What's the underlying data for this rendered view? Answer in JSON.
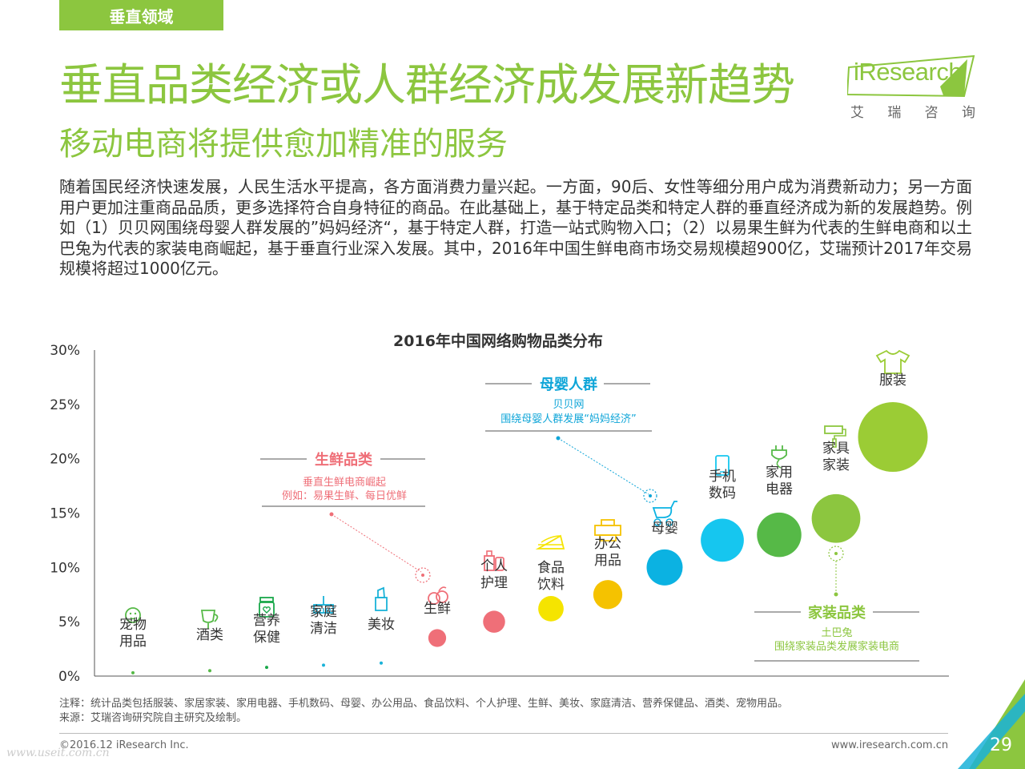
{
  "header": {
    "tag": "垂直领域",
    "title": "垂直品类经济或人群经济成发展新趋势",
    "subtitle": "移动电商将提供愈加精准的服务"
  },
  "logo": {
    "brand": "iResearch",
    "chinese": [
      "艾",
      "瑞",
      "咨",
      "询"
    ]
  },
  "body_text": "随着国民经济快速发展，人民生活水平提高，各方面消费力量兴起。一方面，90后、女性等细分用户成为消费新动力；另一方面用户更加注重商品品质，更多选择符合自身特征的商品。在此基础上，基于特定品类和特定人群的垂直经济成为新的发展趋势。例如（1）贝贝网围绕母婴人群发展的”妈妈经济“，基于特定人群，打造一站式购物入口；（2）以易果生鲜为代表的生鲜电商和以土巴兔为代表的家装电商崛起，基于垂直行业深入发展。其中，2016年中国生鲜电商市场交易规模超900亿，艾瑞预计2017年交易规模将超过1000亿元。",
  "colors": {
    "brand_green": "#8cc63f",
    "text": "#333333"
  },
  "chart_data": {
    "type": "scatter",
    "title": "2016年中国网络购物品类分布",
    "ylim": [
      0,
      30
    ],
    "yticks": [
      "0%",
      "5%",
      "10%",
      "15%",
      "20%",
      "25%",
      "30%"
    ],
    "grid": false,
    "points": [
      {
        "label": [
          "宠物",
          "用品"
        ],
        "icon": "pet-icon",
        "value": 0.3,
        "color": "#56b947"
      },
      {
        "label": [
          "酒类"
        ],
        "icon": "wine-glass-icon",
        "value": 0.5,
        "color": "#56b947"
      },
      {
        "label": [
          "营养",
          "保健"
        ],
        "icon": "health-jar-icon",
        "value": 0.8,
        "color": "#1aa84a"
      },
      {
        "label": [
          "家庭",
          "清洁"
        ],
        "icon": "broom-icon",
        "value": 1.0,
        "color": "#1ab2d8"
      },
      {
        "label": [
          "美妆"
        ],
        "icon": "lipstick-icon",
        "value": 1.2,
        "color": "#1ab2d8"
      },
      {
        "label": [
          "生鲜"
        ],
        "icon": "fruit-icon",
        "value": 3.5,
        "color": "#ef6f78"
      },
      {
        "label": [
          "个人",
          "护理"
        ],
        "icon": "care-bottle-icon",
        "value": 5.0,
        "color": "#ef6f78"
      },
      {
        "label": [
          "食品",
          "饮料"
        ],
        "icon": "cake-icon",
        "value": 6.2,
        "color": "#f5e400"
      },
      {
        "label": [
          "办公",
          "用品"
        ],
        "icon": "printer-icon",
        "value": 7.5,
        "color": "#f5c200"
      },
      {
        "label": [
          "母婴"
        ],
        "icon": "stroller-icon",
        "value": 10.0,
        "color": "#0bb2e2"
      },
      {
        "label": [
          "手机",
          "数码"
        ],
        "icon": "phone-icon",
        "value": 12.5,
        "color": "#16c6ef"
      },
      {
        "label": [
          "家用",
          "电器"
        ],
        "icon": "plug-icon",
        "value": 13.0,
        "color": "#56b947"
      },
      {
        "label": [
          "家具",
          "家装"
        ],
        "icon": "paint-roller-icon",
        "value": 14.5,
        "color": "#8cc63f"
      },
      {
        "label": [
          "服装"
        ],
        "icon": "tshirt-icon",
        "value": 22.0,
        "color": "#9bcc35"
      }
    ],
    "annotations": [
      {
        "heading": "母婴人群",
        "lines": [
          "贝贝网",
          "围绕母婴人群发展“妈妈经济”"
        ],
        "color": "#0ea5d8"
      },
      {
        "heading": "生鲜品类",
        "lines": [
          "垂直生鲜电商崛起",
          "例如：易果生鲜、每日优鲜"
        ],
        "color": "#ef6f78"
      },
      {
        "heading": "家装品类",
        "lines": [
          "土巴兔",
          "围绕家装品类发展家装电商"
        ],
        "color": "#8cc63f"
      }
    ]
  },
  "notes": {
    "note": "注释：统计品类包括服装、家居家装、家用电器、手机数码、母婴、办公用品、食品饮料、个人护理、生鲜、美妆、家庭清洁、营养保健品、酒类、宠物用品。",
    "source": "来源：艾瑞咨询研究院自主研究及绘制。"
  },
  "footer": {
    "copyright": "©2016.12 iResearch Inc.",
    "website": "www.iresearch.com.cn",
    "page_number": "29",
    "watermark": "www.useit.com.cn"
  }
}
